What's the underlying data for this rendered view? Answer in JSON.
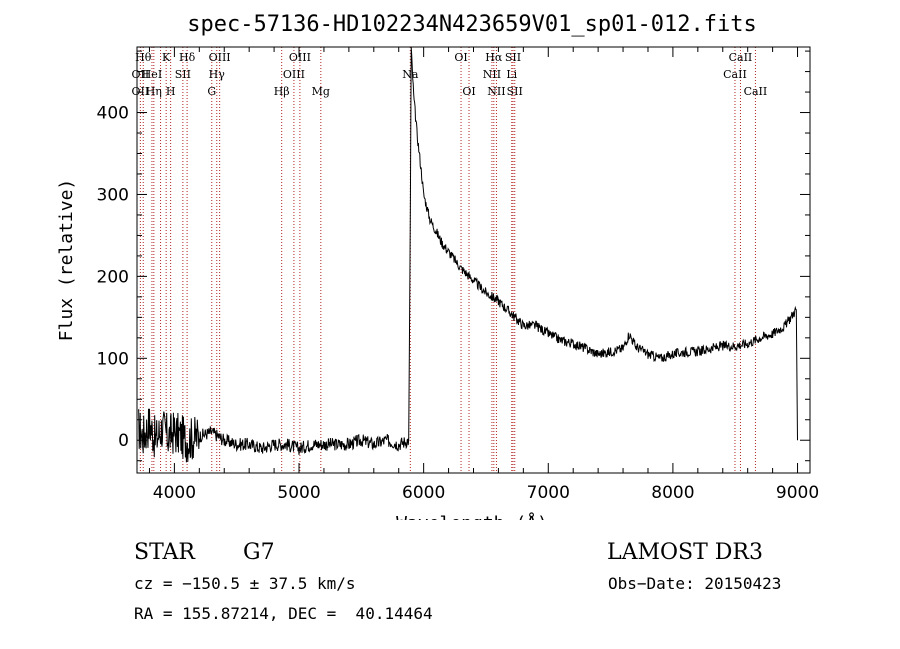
{
  "chart_data": {
    "type": "line",
    "title": "spec-57136-HD102234N423659V01_sp01-012.fits",
    "xlabel": "Wavelength (Å)",
    "ylabel": "Flux (relative)",
    "xlim": [
      3700,
      9100
    ],
    "ylim": [
      -40,
      480
    ],
    "xticks": [
      {
        "value": 4000,
        "label": "4000"
      },
      {
        "value": 5000,
        "label": "5000"
      },
      {
        "value": 6000,
        "label": "6000"
      },
      {
        "value": 7000,
        "label": "7000"
      },
      {
        "value": 8000,
        "label": "8000"
      },
      {
        "value": 9000,
        "label": "9000"
      }
    ],
    "yticks": [
      {
        "value": 0,
        "label": "0"
      },
      {
        "value": 100,
        "label": "100"
      },
      {
        "value": 200,
        "label": "200"
      },
      {
        "value": 300,
        "label": "300"
      },
      {
        "value": 400,
        "label": "400"
      }
    ],
    "spectrum": {
      "x": [
        3710,
        3750,
        3800,
        3850,
        3900,
        3950,
        4000,
        4100,
        4200,
        4300,
        4400,
        4500,
        4600,
        4700,
        4800,
        4900,
        5000,
        5100,
        5200,
        5300,
        5400,
        5500,
        5600,
        5700,
        5800,
        5880,
        5890,
        5900,
        5920,
        5950,
        5980,
        6000,
        6050,
        6100,
        6150,
        6200,
        6300,
        6400,
        6500,
        6600,
        6700,
        6800,
        6900,
        7000,
        7100,
        7200,
        7300,
        7400,
        7500,
        7600,
        7650,
        7700,
        7800,
        7900,
        8000,
        8100,
        8200,
        8300,
        8400,
        8500,
        8600,
        8700,
        8800,
        8900,
        8990,
        9000
      ],
      "y": [
        15,
        5,
        20,
        0,
        15,
        5,
        10,
        0,
        5,
        10,
        0,
        -5,
        -5,
        -10,
        -5,
        -5,
        -10,
        -5,
        -5,
        -5,
        -5,
        0,
        -5,
        0,
        -5,
        0,
        200,
        478,
        420,
        370,
        330,
        300,
        270,
        255,
        240,
        230,
        210,
        195,
        180,
        170,
        155,
        140,
        140,
        130,
        122,
        118,
        112,
        105,
        108,
        112,
        130,
        115,
        105,
        100,
        105,
        108,
        108,
        112,
        115,
        115,
        118,
        125,
        130,
        140,
        160,
        0
      ]
    },
    "lines": [
      {
        "wl": 3750,
        "label": "Hθ",
        "row": 0
      },
      {
        "wl": 3727,
        "label": "OII",
        "row": 1
      },
      {
        "wl": 3727,
        "label": "OII",
        "row": 2
      },
      {
        "wl": 3820,
        "label": "HeI",
        "row": 1
      },
      {
        "wl": 3835,
        "label": "Hη",
        "row": 2
      },
      {
        "wl": 3889,
        "label": "",
        "row": -1
      },
      {
        "wl": 3934,
        "label": "K",
        "row": 0
      },
      {
        "wl": 3970,
        "label": "H",
        "row": 2
      },
      {
        "wl": 4068,
        "label": "SII",
        "row": 1
      },
      {
        "wl": 4102,
        "label": "Hδ",
        "row": 0
      },
      {
        "wl": 4300,
        "label": "G",
        "row": 2
      },
      {
        "wl": 4340,
        "label": "Hγ",
        "row": 1
      },
      {
        "wl": 4363,
        "label": "OIII",
        "row": 0
      },
      {
        "wl": 4861,
        "label": "Hβ",
        "row": 2
      },
      {
        "wl": 4959,
        "label": "OIII",
        "row": 1
      },
      {
        "wl": 5007,
        "label": "OIII",
        "row": 0
      },
      {
        "wl": 5175,
        "label": "Mg",
        "row": 2
      },
      {
        "wl": 5893,
        "label": "Na",
        "row": 1
      },
      {
        "wl": 6300,
        "label": "OI",
        "row": 0
      },
      {
        "wl": 6364,
        "label": "OI",
        "row": 2
      },
      {
        "wl": 6548,
        "label": "NII",
        "row": 1
      },
      {
        "wl": 6563,
        "label": "Hα",
        "row": 0
      },
      {
        "wl": 6584,
        "label": "NII",
        "row": 2
      },
      {
        "wl": 6707,
        "label": "Li",
        "row": 1
      },
      {
        "wl": 6717,
        "label": "SII",
        "row": 0
      },
      {
        "wl": 6731,
        "label": "SII",
        "row": 2
      },
      {
        "wl": 8498,
        "label": "CaII",
        "row": 1
      },
      {
        "wl": 8542,
        "label": "CaII",
        "row": 0
      },
      {
        "wl": 8662,
        "label": "CaII",
        "row": 2
      }
    ]
  },
  "colors": {
    "line_marker": "#b22222",
    "spectrum": "#000000",
    "axis": "#000000"
  },
  "info": {
    "class": "STAR",
    "subclass": "G7",
    "survey": "LAMOST DR3",
    "cz": "cz = −150.5 ± 37.5 km/s",
    "obs_date": "Obs−Date: 20150423",
    "radec": "RA = 155.87214, DEC =  40.14464"
  }
}
